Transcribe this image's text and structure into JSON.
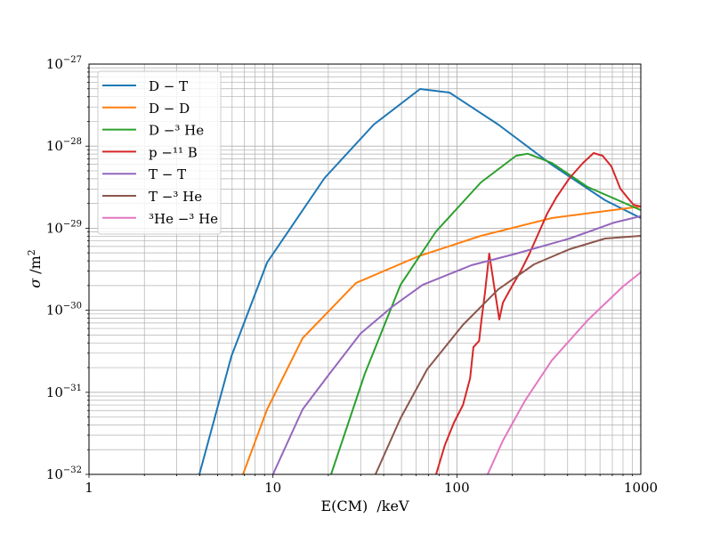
{
  "chart_data": {
    "type": "line",
    "title": "",
    "xlabel": "E(CM)  /keV",
    "ylabel_symbol": "σ",
    "ylabel_unit": "/m",
    "ylabel_unit_sup": "2",
    "xscale": "log",
    "yscale": "log",
    "xlim": [
      1,
      1000
    ],
    "ylim": [
      1e-32,
      1e-27
    ],
    "grid": "major and minor",
    "legend_position": "top-left",
    "x_ticks": [
      {
        "value": 1,
        "label": "1"
      },
      {
        "value": 10,
        "label": "10"
      },
      {
        "value": 100,
        "label": "100"
      },
      {
        "value": 1000,
        "label": "1000"
      }
    ],
    "y_ticks": [
      {
        "value": 1e-27,
        "base": "10",
        "exp": "−27"
      },
      {
        "value": 1e-28,
        "base": "10",
        "exp": "−28"
      },
      {
        "value": 1e-29,
        "base": "10",
        "exp": "−29"
      },
      {
        "value": 1e-30,
        "base": "10",
        "exp": "−30"
      },
      {
        "value": 1e-31,
        "base": "10",
        "exp": "−31"
      },
      {
        "value": 1e-32,
        "base": "10",
        "exp": "−32"
      }
    ],
    "series": [
      {
        "name": "D − T",
        "color": "#1f77b4",
        "x": [
          3.98,
          5.95,
          9.29,
          19.1,
          35.3,
          63.1,
          91.1,
          168,
          328,
          640,
          1000
        ],
        "y": [
          1e-32,
          2.77e-31,
          3.81e-30,
          4.09e-29,
          1.83e-28,
          4.97e-28,
          4.5e-28,
          1.83e-28,
          5.94e-29,
          2.19e-29,
          1.33e-29
        ]
      },
      {
        "name": "D − D",
        "color": "#ff7f0e",
        "x": [
          6.87,
          9.29,
          14.5,
          28.3,
          61.7,
          135,
          328,
          1000
        ],
        "y": [
          1e-32,
          6.19e-32,
          4.56e-31,
          2.15e-30,
          4.54e-30,
          8.07e-30,
          1.33e-29,
          1.84e-29
        ]
      },
      {
        "name": "D −³ He",
        "color": "#2ca02c",
        "x": [
          20.7,
          31.6,
          49.4,
          77.1,
          135,
          210,
          243,
          328,
          513,
          1000
        ],
        "y": [
          1e-32,
          1.68e-31,
          2.04e-30,
          9.14e-30,
          3.61e-29,
          7.64e-29,
          8.09e-29,
          6.25e-29,
          3.19e-29,
          1.66e-29
        ]
      },
      {
        "name": "p −¹¹ B",
        "color": "#d62728",
        "x": [
          77.1,
          86.1,
          96.4,
          108,
          118,
          123,
          132,
          136,
          142,
          150,
          159,
          170,
          178,
          199,
          222,
          248,
          278,
          310,
          347,
          410,
          485,
          554,
          620,
          692,
          774,
          846,
          914,
          1000
        ],
        "y": [
          1e-32,
          2.28e-32,
          4.26e-32,
          7.02e-32,
          1.48e-31,
          3.55e-31,
          4.23e-31,
          7.52e-31,
          1.59e-30,
          4.9e-30,
          2.04e-30,
          7.71e-31,
          1.24e-30,
          1.95e-30,
          2.97e-30,
          4.9e-30,
          8.69e-30,
          1.51e-29,
          2.36e-29,
          4.09e-29,
          6.25e-29,
          8.22e-29,
          7.64e-29,
          5.66e-29,
          3.03e-29,
          2.36e-29,
          1.93e-29,
          1.84e-29
        ]
      },
      {
        "name": "T − T",
        "color": "#9467bd",
        "x": [
          10.0,
          14.5,
          20.3,
          29.9,
          44.2,
          65.2,
          120,
          210,
          410,
          716,
          1000
        ],
        "y": [
          1e-32,
          6.19e-32,
          1.68e-31,
          5.18e-31,
          1.09e-30,
          2.04e-30,
          3.54e-30,
          4.9e-30,
          7.48e-30,
          1.17e-29,
          1.4e-29
        ]
      },
      {
        "name": "T −³ He",
        "color": "#8c564b",
        "x": [
          36.1,
          49.4,
          69.0,
          108,
          168,
          263,
          410,
          640,
          1000
        ],
        "y": [
          1e-32,
          4.82e-32,
          1.91e-31,
          6.64e-31,
          1.8e-30,
          3.63e-30,
          5.55e-30,
          7.48e-30,
          8.07e-30
        ]
      },
      {
        "name": "³He −³ He",
        "color": "#e377c2",
        "x": [
          147,
          178,
          235,
          328,
          513,
          800,
          1000
        ],
        "y": [
          1e-32,
          2.58e-32,
          7.94e-32,
          2.44e-31,
          7.52e-31,
          1.95e-30,
          2.9e-30
        ]
      }
    ]
  }
}
